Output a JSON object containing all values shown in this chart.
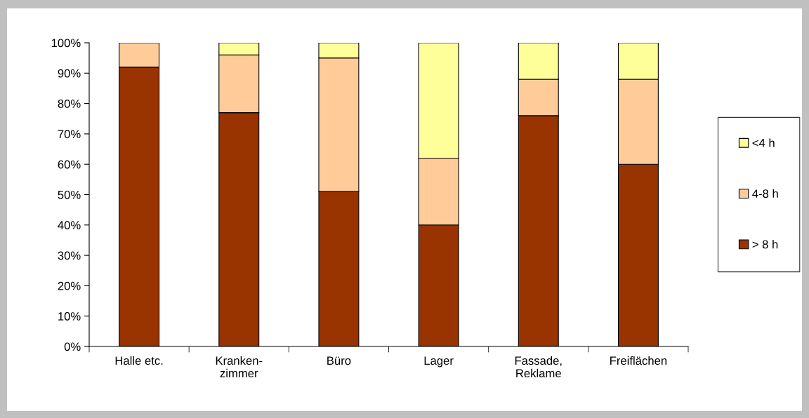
{
  "chart_data": {
    "type": "bar",
    "stacked": true,
    "categories": [
      "Halle etc.",
      "Kranken-\nzimmer",
      "Büro",
      "Lager",
      "Fassade,\nReklame",
      "Freiflächen"
    ],
    "series": [
      {
        "name": "> 8 h",
        "color": "#993300",
        "values": [
          92,
          77,
          51,
          40,
          76,
          60
        ]
      },
      {
        "name": "4-8 h",
        "color": "#ffcc99",
        "values": [
          8,
          19,
          44,
          22,
          12,
          28
        ]
      },
      {
        "name": "<4 h",
        "color": "#ffff99",
        "values": [
          null,
          4,
          5,
          38,
          12,
          12
        ]
      }
    ],
    "ylim": [
      0,
      100
    ],
    "yticks": [
      {
        "value": 0,
        "label": "0%"
      },
      {
        "value": 10,
        "label": "10%"
      },
      {
        "value": 20,
        "label": "20%"
      },
      {
        "value": 30,
        "label": "30%"
      },
      {
        "value": 40,
        "label": "40%"
      },
      {
        "value": 50,
        "label": "50%"
      },
      {
        "value": 60,
        "label": "60%"
      },
      {
        "value": 70,
        "label": "70%"
      },
      {
        "value": 80,
        "label": "80%"
      },
      {
        "value": 90,
        "label": "90%"
      },
      {
        "value": 100,
        "label": "100%"
      }
    ],
    "grid": false,
    "legend": "right"
  }
}
